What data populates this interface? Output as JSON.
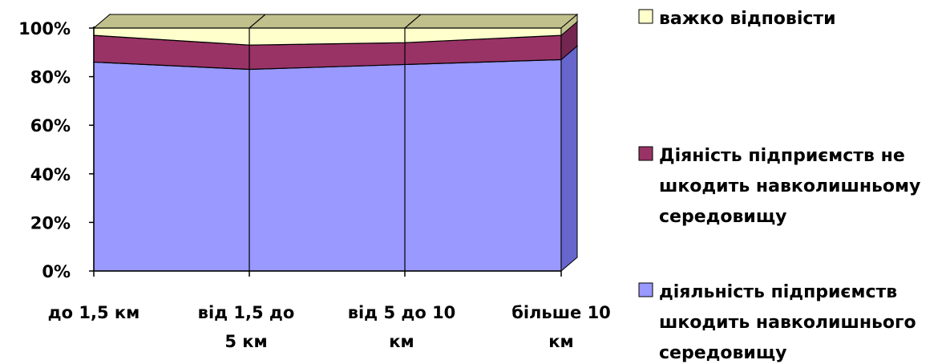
{
  "chart_data": {
    "type": "area",
    "stacking": "percent",
    "three_d": true,
    "categories": [
      [
        "до 1,5 км"
      ],
      [
        "від 1,5 до",
        "5 км"
      ],
      [
        "від 5 до 10",
        "км"
      ],
      [
        "більше 10",
        "км"
      ]
    ],
    "series": [
      {
        "name_lines": [
          "діяльність підприємств",
          "шкодить навколишнього",
          "середовищу"
        ],
        "values": [
          86,
          83,
          85,
          87
        ],
        "color": "#9999ff",
        "side_color": "#6666cc"
      },
      {
        "name_lines": [
          "Діяність підприємств не",
          "шкодить навколишньому",
          "середовищу"
        ],
        "values": [
          11,
          10,
          9,
          10
        ],
        "color": "#993366",
        "side_color": "#732650"
      },
      {
        "name_lines": [
          "важко відповісти"
        ],
        "values": [
          3,
          7,
          6,
          3
        ],
        "color": "#ffffcc",
        "side_color": "#c0c08c"
      }
    ],
    "y_ticks": [
      "0%",
      "20%",
      "40%",
      "60%",
      "80%",
      "100%"
    ],
    "ylim": [
      0,
      100
    ],
    "legend_position": "right",
    "legend_order": "top-to-bottom reversed series order"
  }
}
